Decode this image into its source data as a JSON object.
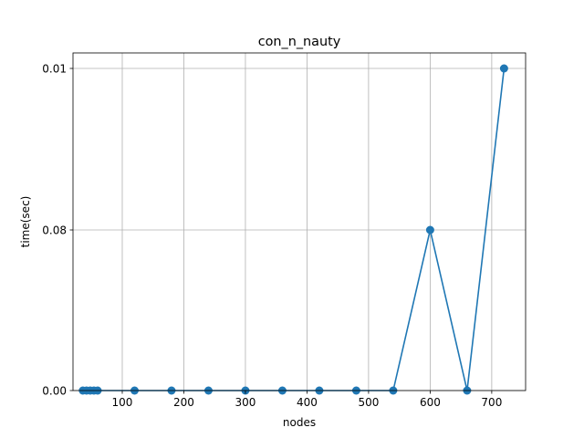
{
  "chart_data": {
    "type": "line",
    "title": "con_n_nauty",
    "xlabel": "nodes",
    "ylabel": "time(sec)",
    "xlim": [
      20,
      755
    ],
    "x_ticks": [
      100,
      200,
      300,
      400,
      500,
      600,
      700
    ],
    "y_ticks": [
      {
        "label": "0.00",
        "level": 0
      },
      {
        "label": "0.08",
        "level": 1
      },
      {
        "label": "0.01",
        "level": 2
      }
    ],
    "grid": true,
    "series": [
      {
        "color": "#1f77b4",
        "marker": "circle",
        "x": [
          36,
          42,
          48,
          54,
          60,
          120,
          180,
          240,
          300,
          360,
          420,
          480,
          540,
          600,
          660,
          720
        ],
        "y": [
          "0.00",
          "0.00",
          "0.00",
          "0.00",
          "0.00",
          "0.00",
          "0.00",
          "0.00",
          "0.00",
          "0.00",
          "0.00",
          "0.00",
          "0.00",
          "0.08",
          "0.00",
          "0.01"
        ],
        "y_level": [
          0,
          0,
          0,
          0,
          0,
          0,
          0,
          0,
          0,
          0,
          0,
          0,
          0,
          1,
          0,
          2
        ]
      }
    ]
  }
}
